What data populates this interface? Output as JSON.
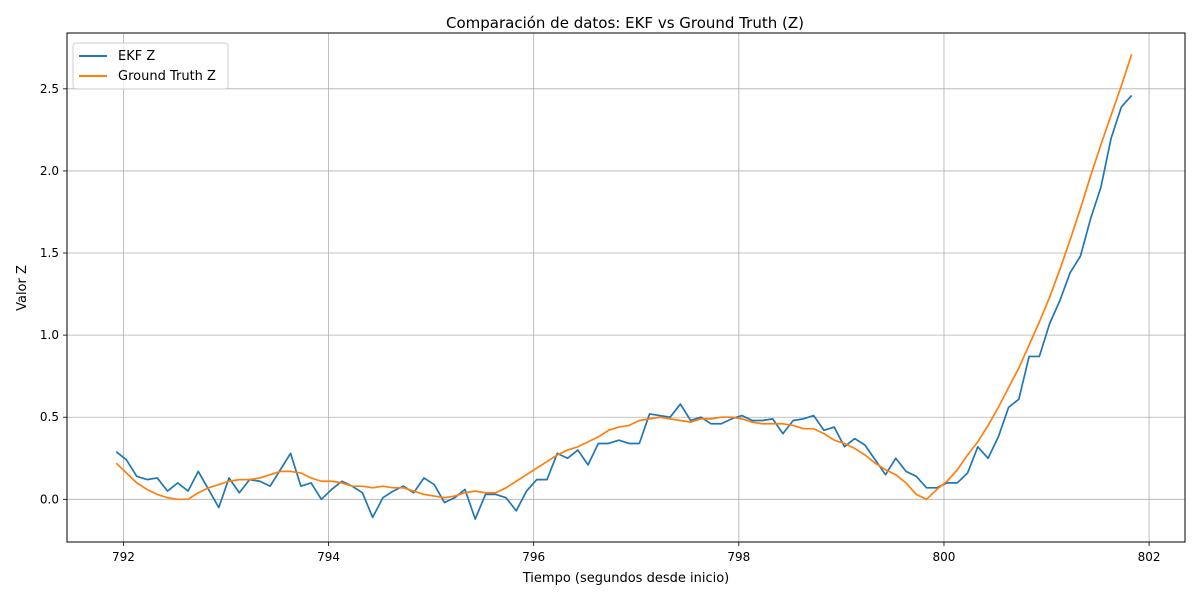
{
  "chart_data": {
    "type": "line",
    "title": "Comparación de datos: EKF vs Ground Truth (Z)",
    "xlabel": "Tiempo (segundos desde inicio)",
    "ylabel": "Valor Z",
    "xlim": [
      791.45,
      802.35
    ],
    "ylim": [
      -0.26,
      2.84
    ],
    "xticks": [
      792,
      794,
      796,
      798,
      800,
      802
    ],
    "yticks": [
      0.0,
      0.5,
      1.0,
      1.5,
      2.0,
      2.5
    ],
    "ytick_labels": [
      "0.0",
      "0.5",
      "1.0",
      "1.5",
      "2.0",
      "2.5"
    ],
    "grid": true,
    "legend_position": "top-left",
    "series": [
      {
        "name": "EKF Z",
        "color": "#1f77b4",
        "x": [
          791.93,
          792.03,
          792.13,
          792.23,
          792.33,
          792.43,
          792.53,
          792.63,
          792.73,
          792.83,
          792.93,
          793.03,
          793.13,
          793.23,
          793.33,
          793.43,
          793.53,
          793.63,
          793.73,
          793.83,
          793.93,
          794.03,
          794.13,
          794.23,
          794.33,
          794.43,
          794.53,
          794.63,
          794.73,
          794.83,
          794.93,
          795.03,
          795.13,
          795.23,
          795.33,
          795.43,
          795.53,
          795.63,
          795.73,
          795.83,
          795.93,
          796.03,
          796.13,
          796.23,
          796.33,
          796.43,
          796.53,
          796.63,
          796.73,
          796.83,
          796.93,
          797.03,
          797.13,
          797.23,
          797.33,
          797.43,
          797.53,
          797.63,
          797.73,
          797.83,
          797.93,
          798.03,
          798.13,
          798.23,
          798.33,
          798.43,
          798.53,
          798.63,
          798.73,
          798.83,
          798.93,
          799.03,
          799.13,
          799.23,
          799.33,
          799.43,
          799.53,
          799.63,
          799.73,
          799.83,
          799.93,
          800.03,
          800.13,
          800.23,
          800.33,
          800.43,
          800.53,
          800.63,
          800.73,
          800.83,
          800.93,
          801.03,
          801.13,
          801.23,
          801.33,
          801.43,
          801.53,
          801.63,
          801.73,
          801.83
        ],
        "y": [
          0.29,
          0.24,
          0.14,
          0.12,
          0.13,
          0.05,
          0.1,
          0.05,
          0.17,
          0.06,
          -0.05,
          0.13,
          0.04,
          0.12,
          0.11,
          0.08,
          0.18,
          0.28,
          0.08,
          0.1,
          0.0,
          0.06,
          0.11,
          0.08,
          0.04,
          -0.11,
          0.01,
          0.05,
          0.08,
          0.04,
          0.13,
          0.09,
          -0.02,
          0.01,
          0.06,
          -0.12,
          0.03,
          0.03,
          0.01,
          -0.07,
          0.05,
          0.12,
          0.12,
          0.28,
          0.25,
          0.3,
          0.21,
          0.34,
          0.34,
          0.36,
          0.34,
          0.34,
          0.52,
          0.51,
          0.5,
          0.58,
          0.48,
          0.5,
          0.46,
          0.46,
          0.49,
          0.51,
          0.48,
          0.48,
          0.49,
          0.4,
          0.48,
          0.49,
          0.51,
          0.42,
          0.44,
          0.32,
          0.37,
          0.33,
          0.24,
          0.15,
          0.25,
          0.17,
          0.14,
          0.07,
          0.07,
          0.1,
          0.1,
          0.16,
          0.32,
          0.25,
          0.38,
          0.56,
          0.61,
          0.87,
          0.87,
          1.07,
          1.21,
          1.38,
          1.48,
          1.71,
          1.9,
          2.2,
          2.39,
          2.46
        ]
      },
      {
        "name": "Ground Truth Z",
        "color": "#ff7f0e",
        "x": [
          791.93,
          792.03,
          792.13,
          792.23,
          792.33,
          792.43,
          792.53,
          792.63,
          792.73,
          792.83,
          792.93,
          793.03,
          793.13,
          793.23,
          793.33,
          793.43,
          793.53,
          793.63,
          793.73,
          793.83,
          793.93,
          794.03,
          794.13,
          794.23,
          794.33,
          794.43,
          794.53,
          794.63,
          794.73,
          794.83,
          794.93,
          795.03,
          795.13,
          795.23,
          795.33,
          795.43,
          795.53,
          795.63,
          795.73,
          795.83,
          795.93,
          796.03,
          796.13,
          796.23,
          796.33,
          796.43,
          796.53,
          796.63,
          796.73,
          796.83,
          796.93,
          797.03,
          797.13,
          797.23,
          797.33,
          797.43,
          797.53,
          797.63,
          797.73,
          797.83,
          797.93,
          798.03,
          798.13,
          798.23,
          798.33,
          798.43,
          798.53,
          798.63,
          798.73,
          798.83,
          798.93,
          799.03,
          799.13,
          799.23,
          799.33,
          799.43,
          799.53,
          799.63,
          799.73,
          799.83,
          799.93,
          800.03,
          800.13,
          800.23,
          800.33,
          800.43,
          800.53,
          800.63,
          800.73,
          800.83,
          800.93,
          801.03,
          801.13,
          801.23,
          801.33,
          801.43,
          801.53,
          801.63,
          801.73,
          801.83
        ],
        "y": [
          0.22,
          0.16,
          0.1,
          0.06,
          0.03,
          0.01,
          0.0,
          0.0,
          0.04,
          0.07,
          0.09,
          0.11,
          0.12,
          0.12,
          0.13,
          0.15,
          0.17,
          0.17,
          0.16,
          0.13,
          0.11,
          0.11,
          0.1,
          0.08,
          0.08,
          0.07,
          0.08,
          0.07,
          0.07,
          0.05,
          0.03,
          0.02,
          0.01,
          0.02,
          0.04,
          0.05,
          0.04,
          0.04,
          0.07,
          0.11,
          0.15,
          0.19,
          0.23,
          0.27,
          0.3,
          0.32,
          0.35,
          0.38,
          0.42,
          0.44,
          0.45,
          0.48,
          0.49,
          0.5,
          0.49,
          0.48,
          0.47,
          0.49,
          0.49,
          0.5,
          0.5,
          0.49,
          0.47,
          0.46,
          0.46,
          0.46,
          0.45,
          0.43,
          0.43,
          0.4,
          0.36,
          0.34,
          0.31,
          0.27,
          0.22,
          0.18,
          0.15,
          0.1,
          0.03,
          0.0,
          0.06,
          0.11,
          0.18,
          0.27,
          0.35,
          0.45,
          0.56,
          0.68,
          0.8,
          0.94,
          1.08,
          1.23,
          1.4,
          1.58,
          1.77,
          1.97,
          2.16,
          2.34,
          2.52,
          2.71
        ]
      }
    ]
  }
}
